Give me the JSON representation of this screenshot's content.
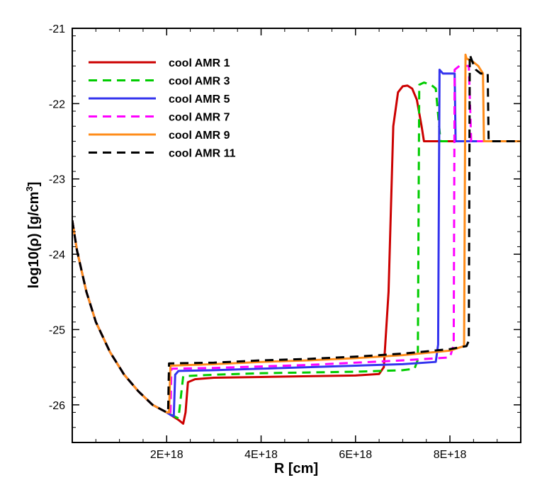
{
  "chart_data": {
    "type": "line",
    "title": "",
    "xlabel": "R [cm]",
    "ylabel_prefix": "log10(ρ) [g/cm",
    "ylabel_sup": "3",
    "ylabel_suffix": "]",
    "xlim": [
      0,
      9.5e+18
    ],
    "ylim": [
      -26.5,
      -21
    ],
    "x_ticks": [
      {
        "value": 2e+18,
        "label": "2E+18"
      },
      {
        "value": 4e+18,
        "label": "4E+18"
      },
      {
        "value": 6e+18,
        "label": "6E+18"
      },
      {
        "value": 8e+18,
        "label": "8E+18"
      }
    ],
    "y_ticks": [
      {
        "value": -21,
        "label": "-21"
      },
      {
        "value": -22,
        "label": "-22"
      },
      {
        "value": -23,
        "label": "-23"
      },
      {
        "value": -24,
        "label": "-24"
      },
      {
        "value": -25,
        "label": "-25"
      },
      {
        "value": -26,
        "label": "-26"
      }
    ],
    "grid": false,
    "legend_position": "top-left",
    "series": [
      {
        "name": "cool AMR 1",
        "color": "#cc0000",
        "dash": "solid",
        "x": [
          0,
          1e+17,
          3e+17,
          5e+17,
          8e+17,
          1.1e+18,
          1.4e+18,
          1.7e+18,
          2e+18,
          2.25e+18,
          2.35e+18,
          2.4e+18,
          2.45e+18,
          2.6e+18,
          3e+18,
          4e+18,
          5e+18,
          6e+18,
          6.5e+18,
          6.6e+18,
          6.7e+18,
          6.8e+18,
          6.9e+18,
          7e+18,
          7.1e+18,
          7.2e+18,
          7.3e+18,
          7.4e+18,
          7.45e+18,
          7.5e+18,
          8e+18,
          9e+18,
          9.5e+18
        ],
        "y": [
          -23.55,
          -23.95,
          -24.5,
          -24.9,
          -25.3,
          -25.6,
          -25.82,
          -26.0,
          -26.1,
          -26.2,
          -26.25,
          -26.1,
          -25.7,
          -25.66,
          -25.64,
          -25.63,
          -25.62,
          -25.61,
          -25.59,
          -25.5,
          -24.5,
          -22.3,
          -21.85,
          -21.77,
          -21.76,
          -21.8,
          -21.95,
          -22.3,
          -22.5,
          -22.5,
          -22.5,
          -22.5,
          -22.5
        ]
      },
      {
        "name": "cool AMR 3",
        "color": "#00cc00",
        "dash": "dashed",
        "x": [
          0,
          1e+17,
          3e+17,
          5e+17,
          8e+17,
          1.1e+18,
          1.4e+18,
          1.7e+18,
          2e+18,
          2.15e+18,
          2.25e+18,
          2.3e+18,
          2.35e+18,
          3e+18,
          4e+18,
          5e+18,
          6e+18,
          7e+18,
          7.25e+18,
          7.32e+18,
          7.35e+18,
          7.45e+18,
          7.6e+18,
          7.7e+18,
          7.8e+18,
          8e+18,
          9e+18,
          9.5e+18
        ],
        "y": [
          -23.55,
          -23.95,
          -24.5,
          -24.9,
          -25.3,
          -25.6,
          -25.82,
          -26.0,
          -26.1,
          -26.15,
          -26.18,
          -25.9,
          -25.62,
          -25.6,
          -25.58,
          -25.57,
          -25.56,
          -25.54,
          -25.52,
          -25.4,
          -21.75,
          -21.72,
          -21.75,
          -21.8,
          -22.5,
          -22.5,
          -22.5,
          -22.5
        ]
      },
      {
        "name": "cool AMR 5",
        "color": "#3333ee",
        "dash": "solid",
        "x": [
          0,
          1e+17,
          3e+17,
          5e+17,
          8e+17,
          1.1e+18,
          1.4e+18,
          1.7e+18,
          2e+18,
          2.1e+18,
          2.15e+18,
          2.18e+18,
          2.25e+18,
          3e+18,
          4e+18,
          5e+18,
          6e+18,
          7e+18,
          7.7e+18,
          7.75e+18,
          7.78e+18,
          7.85e+18,
          8.1e+18,
          8.12e+18,
          8.5e+18,
          9e+18,
          9.5e+18
        ],
        "y": [
          -23.55,
          -23.95,
          -24.5,
          -24.9,
          -25.3,
          -25.6,
          -25.82,
          -26.0,
          -26.1,
          -26.14,
          -26.15,
          -25.6,
          -25.55,
          -25.54,
          -25.52,
          -25.5,
          -25.48,
          -25.46,
          -25.43,
          -25.2,
          -21.55,
          -21.6,
          -21.6,
          -22.5,
          -22.5,
          -22.5,
          -22.5
        ]
      },
      {
        "name": "cool AMR 7",
        "color": "#ff00ff",
        "dash": "dashed",
        "x": [
          0,
          1e+17,
          3e+17,
          5e+17,
          8e+17,
          1.1e+18,
          1.4e+18,
          1.7e+18,
          2e+18,
          2.08e+18,
          2.1e+18,
          3e+18,
          4e+18,
          5e+18,
          6e+18,
          7e+18,
          8e+18,
          8.08e+18,
          8.1e+18,
          8.2e+18,
          8.4e+18,
          8.45e+18,
          9e+18,
          9.5e+18
        ],
        "y": [
          -23.55,
          -23.95,
          -24.5,
          -24.9,
          -25.3,
          -25.6,
          -25.82,
          -26.0,
          -26.1,
          -26.12,
          -25.52,
          -25.51,
          -25.49,
          -25.47,
          -25.44,
          -25.41,
          -25.37,
          -25.2,
          -21.55,
          -21.5,
          -21.5,
          -22.5,
          -22.5,
          -22.5
        ]
      },
      {
        "name": "cool AMR 9",
        "color": "#ff8c1a",
        "dash": "solid",
        "x": [
          0,
          1e+17,
          3e+17,
          5e+17,
          8e+17,
          1.1e+18,
          1.4e+18,
          1.7e+18,
          2e+18,
          2.05e+18,
          2.08e+18,
          3e+18,
          4e+18,
          5e+18,
          6e+18,
          7e+18,
          8e+18,
          8.3e+18,
          8.33e+18,
          8.35e+18,
          8.5e+18,
          8.6e+18,
          8.7e+18,
          8.72e+18,
          9e+18,
          9.5e+18
        ],
        "y": [
          -23.55,
          -23.95,
          -24.5,
          -24.9,
          -25.3,
          -25.6,
          -25.82,
          -26.0,
          -26.1,
          -26.1,
          -25.48,
          -25.46,
          -25.43,
          -25.41,
          -25.38,
          -25.34,
          -25.28,
          -25.22,
          -21.35,
          -21.4,
          -21.45,
          -21.5,
          -21.6,
          -22.5,
          -22.5,
          -22.5
        ]
      },
      {
        "name": "cool AMR 11",
        "color": "#000000",
        "dash": "dashed",
        "x": [
          0,
          1e+17,
          3e+17,
          5e+17,
          8e+17,
          1.1e+18,
          1.4e+18,
          1.7e+18,
          2e+18,
          2.03e+18,
          2.05e+18,
          3e+18,
          4e+18,
          5e+18,
          6e+18,
          7e+18,
          8e+18,
          8.35e+18,
          8.4e+18,
          8.42e+18,
          8.48e+18,
          8.55e+18,
          8.65e+18,
          8.75e+18,
          8.8e+18,
          8.82e+18,
          9e+18,
          9.5e+18
        ],
        "y": [
          -23.55,
          -23.95,
          -24.5,
          -24.9,
          -25.3,
          -25.6,
          -25.82,
          -26.0,
          -26.1,
          -26.1,
          -25.45,
          -25.44,
          -25.41,
          -25.39,
          -25.36,
          -25.32,
          -25.26,
          -25.22,
          -25.15,
          -21.35,
          -21.45,
          -21.55,
          -21.6,
          -21.6,
          -21.6,
          -22.5,
          -22.5,
          -22.5
        ]
      }
    ]
  }
}
